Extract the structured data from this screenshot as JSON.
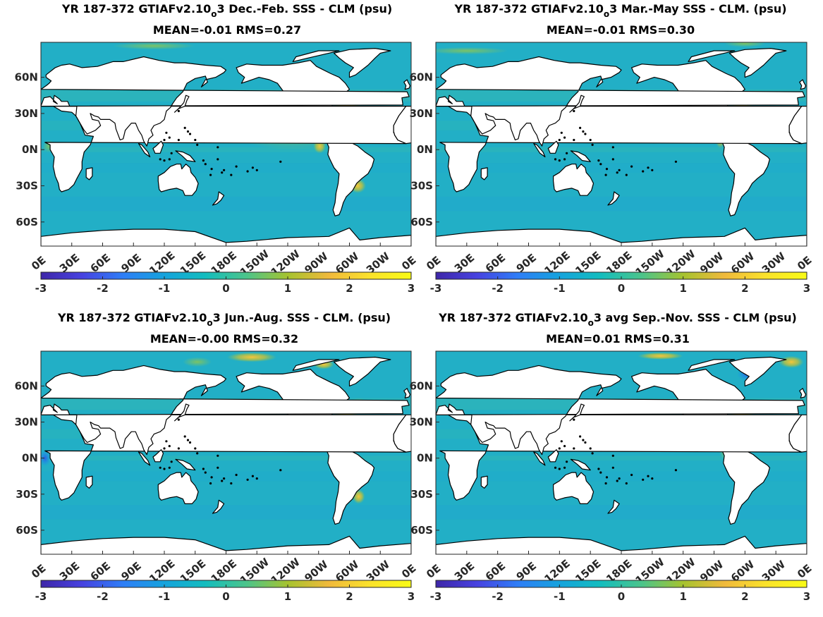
{
  "colormap": {
    "name": "parula",
    "stops": [
      "#3e26a8",
      "#4742e0",
      "#2e7ef7",
      "#15a3dd",
      "#13bdbe",
      "#4cc48a",
      "#a6c32f",
      "#f0b93c",
      "#fae22b",
      "#f9fb15"
    ]
  },
  "chart_data": [
    {
      "type": "heatmap",
      "title_line1_a": "YR 187-372 GTIAFv2.10",
      "title_sub": "o",
      "title_line1_b": "3  Dec.-Feb. SSS - CLM (psu)",
      "title_line2": "MEAN=-0.01   RMS=0.27",
      "season": "DJF",
      "mean": -0.01,
      "rms": 0.27,
      "y_ticks": [
        "60N",
        "30N",
        "0N",
        "30S",
        "60S"
      ],
      "x_ticks": [
        "0E",
        "30E",
        "60E",
        "90E",
        "120E",
        "150E",
        "180E",
        "150W",
        "120W",
        "90W",
        "60W",
        "30W",
        "0E"
      ],
      "colorbar_ticks": [
        "-3",
        "-2",
        "-1",
        "0",
        "1",
        "2",
        "3"
      ],
      "clim": [
        -3,
        3
      ],
      "ylim": [
        -80,
        89
      ],
      "xlim": [
        0,
        360
      ]
    },
    {
      "type": "heatmap",
      "title_line1_a": "YR 187-372 GTIAFv2.10",
      "title_sub": "o",
      "title_line1_b": "3 Mar.-May SSS - CLM. (psu)",
      "title_line2": "MEAN=-0.01   RMS=0.30",
      "season": "MAM",
      "mean": -0.01,
      "rms": 0.3,
      "y_ticks": [
        "60N",
        "30N",
        "0N",
        "30S",
        "60S"
      ],
      "x_ticks": [
        "0E",
        "30E",
        "60E",
        "90E",
        "120E",
        "150E",
        "180E",
        "150W",
        "120W",
        "90W",
        "60W",
        "30W",
        "0E"
      ],
      "colorbar_ticks": [
        "-3",
        "-2",
        "-1",
        "0",
        "1",
        "2",
        "3"
      ],
      "clim": [
        -3,
        3
      ],
      "ylim": [
        -80,
        89
      ],
      "xlim": [
        0,
        360
      ]
    },
    {
      "type": "heatmap",
      "title_line1_a": "YR 187-372 GTIAFv2.10",
      "title_sub": "o",
      "title_line1_b": "3 Jun.-Aug. SSS - CLM. (psu)",
      "title_line2": "MEAN=-0.00   RMS=0.32",
      "season": "JJA",
      "mean": -0.0,
      "rms": 0.32,
      "y_ticks": [
        "60N",
        "30N",
        "0N",
        "30S",
        "60S"
      ],
      "x_ticks": [
        "0E",
        "30E",
        "60E",
        "90E",
        "120E",
        "150E",
        "180E",
        "150W",
        "120W",
        "90W",
        "60W",
        "30W",
        "0E"
      ],
      "colorbar_ticks": [
        "-3",
        "-2",
        "-1",
        "0",
        "1",
        "2",
        "3"
      ],
      "clim": [
        -3,
        3
      ],
      "ylim": [
        -80,
        89
      ],
      "xlim": [
        0,
        360
      ]
    },
    {
      "type": "heatmap",
      "title_line1_a": "YR 187-372 GTIAFv2.10",
      "title_sub": "o",
      "title_line1_b": "3 avg Sep.-Nov. SSS - CLM (psu)",
      "title_line2": "MEAN=0.01   RMS=0.31",
      "season": "SON",
      "mean": 0.01,
      "rms": 0.31,
      "y_ticks": [
        "60N",
        "30N",
        "0N",
        "30S",
        "60S"
      ],
      "x_ticks": [
        "0E",
        "30E",
        "60E",
        "90E",
        "120E",
        "150E",
        "180E",
        "150W",
        "120W",
        "90W",
        "60W",
        "30W",
        "0E"
      ],
      "colorbar_ticks": [
        "-3",
        "-2",
        "-1",
        "0",
        "1",
        "2",
        "3"
      ],
      "clim": [
        -3,
        3
      ],
      "ylim": [
        -80,
        89
      ],
      "xlim": [
        0,
        360
      ]
    }
  ]
}
